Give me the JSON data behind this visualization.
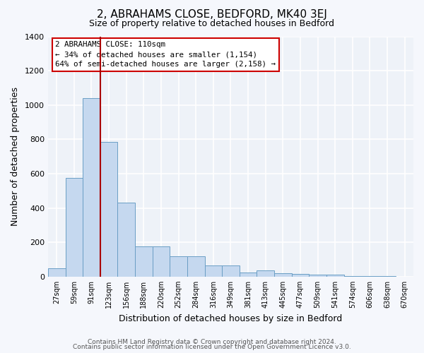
{
  "title": "2, ABRAHAMS CLOSE, BEDFORD, MK40 3EJ",
  "subtitle": "Size of property relative to detached houses in Bedford",
  "xlabel": "Distribution of detached houses by size in Bedford",
  "ylabel": "Number of detached properties",
  "categories": [
    "27sqm",
    "59sqm",
    "91sqm",
    "123sqm",
    "156sqm",
    "188sqm",
    "220sqm",
    "252sqm",
    "284sqm",
    "316sqm",
    "349sqm",
    "381sqm",
    "413sqm",
    "445sqm",
    "477sqm",
    "509sqm",
    "541sqm",
    "574sqm",
    "606sqm",
    "638sqm",
    "670sqm"
  ],
  "bar_values": [
    50,
    575,
    1040,
    785,
    430,
    175,
    175,
    120,
    120,
    65,
    65,
    25,
    35,
    20,
    15,
    10,
    10,
    5,
    5,
    3,
    0
  ],
  "bar_color": "#c5d8ef",
  "bar_edge_color": "#6a9ec5",
  "fig_bg_color": "#f5f7fc",
  "ax_bg_color": "#eef2f8",
  "grid_color": "#ffffff",
  "vline_x": 3.0,
  "vline_color": "#aa0000",
  "ylim": [
    0,
    1400
  ],
  "yticks": [
    0,
    200,
    400,
    600,
    800,
    1000,
    1200,
    1400
  ],
  "annotation_title": "2 ABRAHAMS CLOSE: 110sqm",
  "annotation_line1": "← 34% of detached houses are smaller (1,154)",
  "annotation_line2": "64% of semi-detached houses are larger (2,158) →",
  "annotation_box_facecolor": "#ffffff",
  "annotation_box_edgecolor": "#cc0000",
  "footer1": "Contains HM Land Registry data © Crown copyright and database right 2024.",
  "footer2": "Contains public sector information licensed under the Open Government Licence v3.0.",
  "title_fontsize": 11,
  "subtitle_fontsize": 9,
  "xlabel_fontsize": 9,
  "ylabel_fontsize": 9,
  "tick_fontsize": 7,
  "footer_fontsize": 6.5
}
